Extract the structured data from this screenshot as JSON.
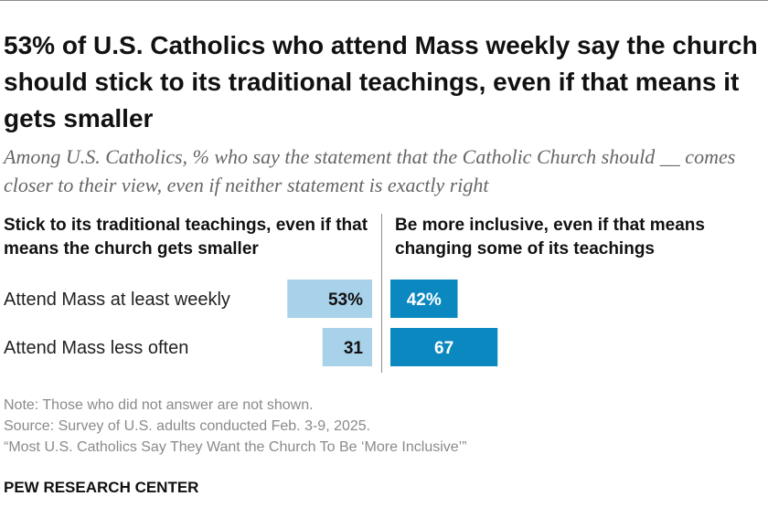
{
  "title": "53% of U.S. Catholics who attend Mass weekly say the church should stick to its traditional teachings, even if that means it gets smaller",
  "subtitle": "Among U.S. Catholics, % who say the statement that the Catholic Church should __ comes closer to their view, even if neither statement is exactly right",
  "chart_data": {
    "type": "bar",
    "orientation": "horizontal-diverging",
    "categories": [
      "Attend Mass at least weekly",
      "Attend Mass less often"
    ],
    "series": [
      {
        "name": "Stick to its traditional teachings, even if that means the church gets smaller",
        "values": [
          53,
          31
        ],
        "value_labels": [
          "53%",
          "31"
        ],
        "color": "#a8d1ea",
        "label_color": "#111111",
        "side": "left"
      },
      {
        "name": "Be more inclusive, even if that means changing some of its teachings",
        "values": [
          42,
          67
        ],
        "value_labels": [
          "42%",
          "67"
        ],
        "color": "#0b88c0",
        "label_color": "#ffffff",
        "side": "right"
      }
    ],
    "xlim": [
      0,
      100
    ]
  },
  "notes": {
    "note": "Note: Those who did not answer are not shown.",
    "source": "Source: Survey of U.S. adults conducted Feb. 3-9, 2025.",
    "report": "“Most U.S. Catholics Say They Want the Church To Be ‘More Inclusive’”"
  },
  "brand": "PEW RESEARCH CENTER"
}
